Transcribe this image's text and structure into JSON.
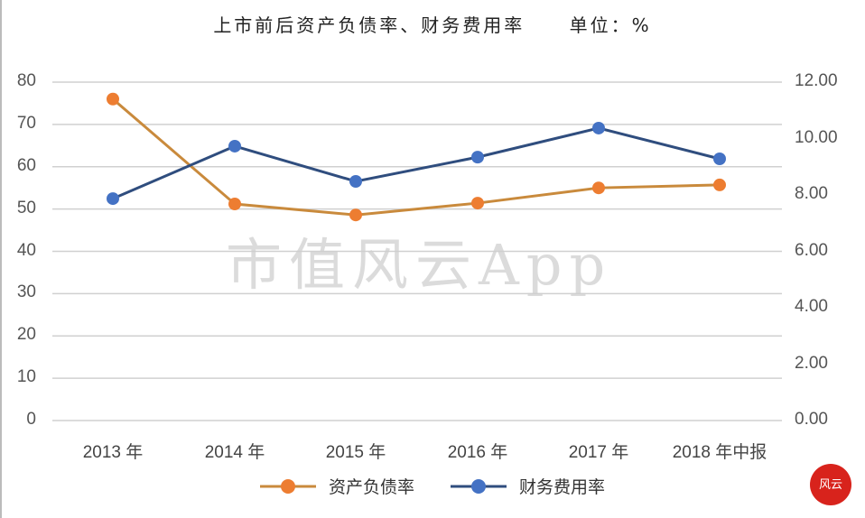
{
  "title": {
    "text": "上市前后资产负债率、财务费用率",
    "unit": "单位：%"
  },
  "axes": {
    "left_ticks": [
      "80",
      "70",
      "60",
      "50",
      "40",
      "30",
      "20",
      "10",
      "0"
    ],
    "right_ticks": [
      "12.00",
      "10.00",
      "8.00",
      "6.00",
      "4.00",
      "2.00",
      "0.00"
    ],
    "x_ticks": [
      "2013 年",
      "2014 年",
      "2015 年",
      "2016 年",
      "2017 年",
      "2018 年中报"
    ]
  },
  "legend": {
    "series_1": "资产负债率",
    "series_2": "财务费用率"
  },
  "watermark": "市值风云App",
  "stamp": "风云",
  "colors": {
    "orange": "#ed7d31",
    "orange_line": "#c98a3c",
    "blue": "#4472c4",
    "blue_line": "#2f4d7e",
    "grid": "#d0d0d0",
    "stamp": "#d8231c"
  },
  "chart_data": {
    "type": "line",
    "title": "上市前后资产负债率、财务费用率 单位：%",
    "categories": [
      "2013 年",
      "2014 年",
      "2015 年",
      "2016 年",
      "2017 年",
      "2018 年中报"
    ],
    "series": [
      {
        "name": "资产负债率",
        "axis": "left",
        "color": "#ed7d31",
        "values": [
          76.0,
          51.2,
          48.6,
          51.4,
          55.0,
          55.7
        ]
      },
      {
        "name": "财务费用率",
        "axis": "right",
        "color": "#4472c4",
        "values": [
          7.87,
          9.73,
          8.48,
          9.34,
          10.37,
          9.28
        ]
      }
    ],
    "xlabel": "",
    "ylabel": "",
    "ylim": [
      0,
      80
    ],
    "ylim_right": [
      0,
      12
    ],
    "y_ticks_left": [
      0,
      10,
      20,
      30,
      40,
      50,
      60,
      70,
      80
    ],
    "y_ticks_right": [
      0,
      2,
      4,
      6,
      8,
      10,
      12
    ],
    "grid": true,
    "legend_position": "bottom"
  }
}
